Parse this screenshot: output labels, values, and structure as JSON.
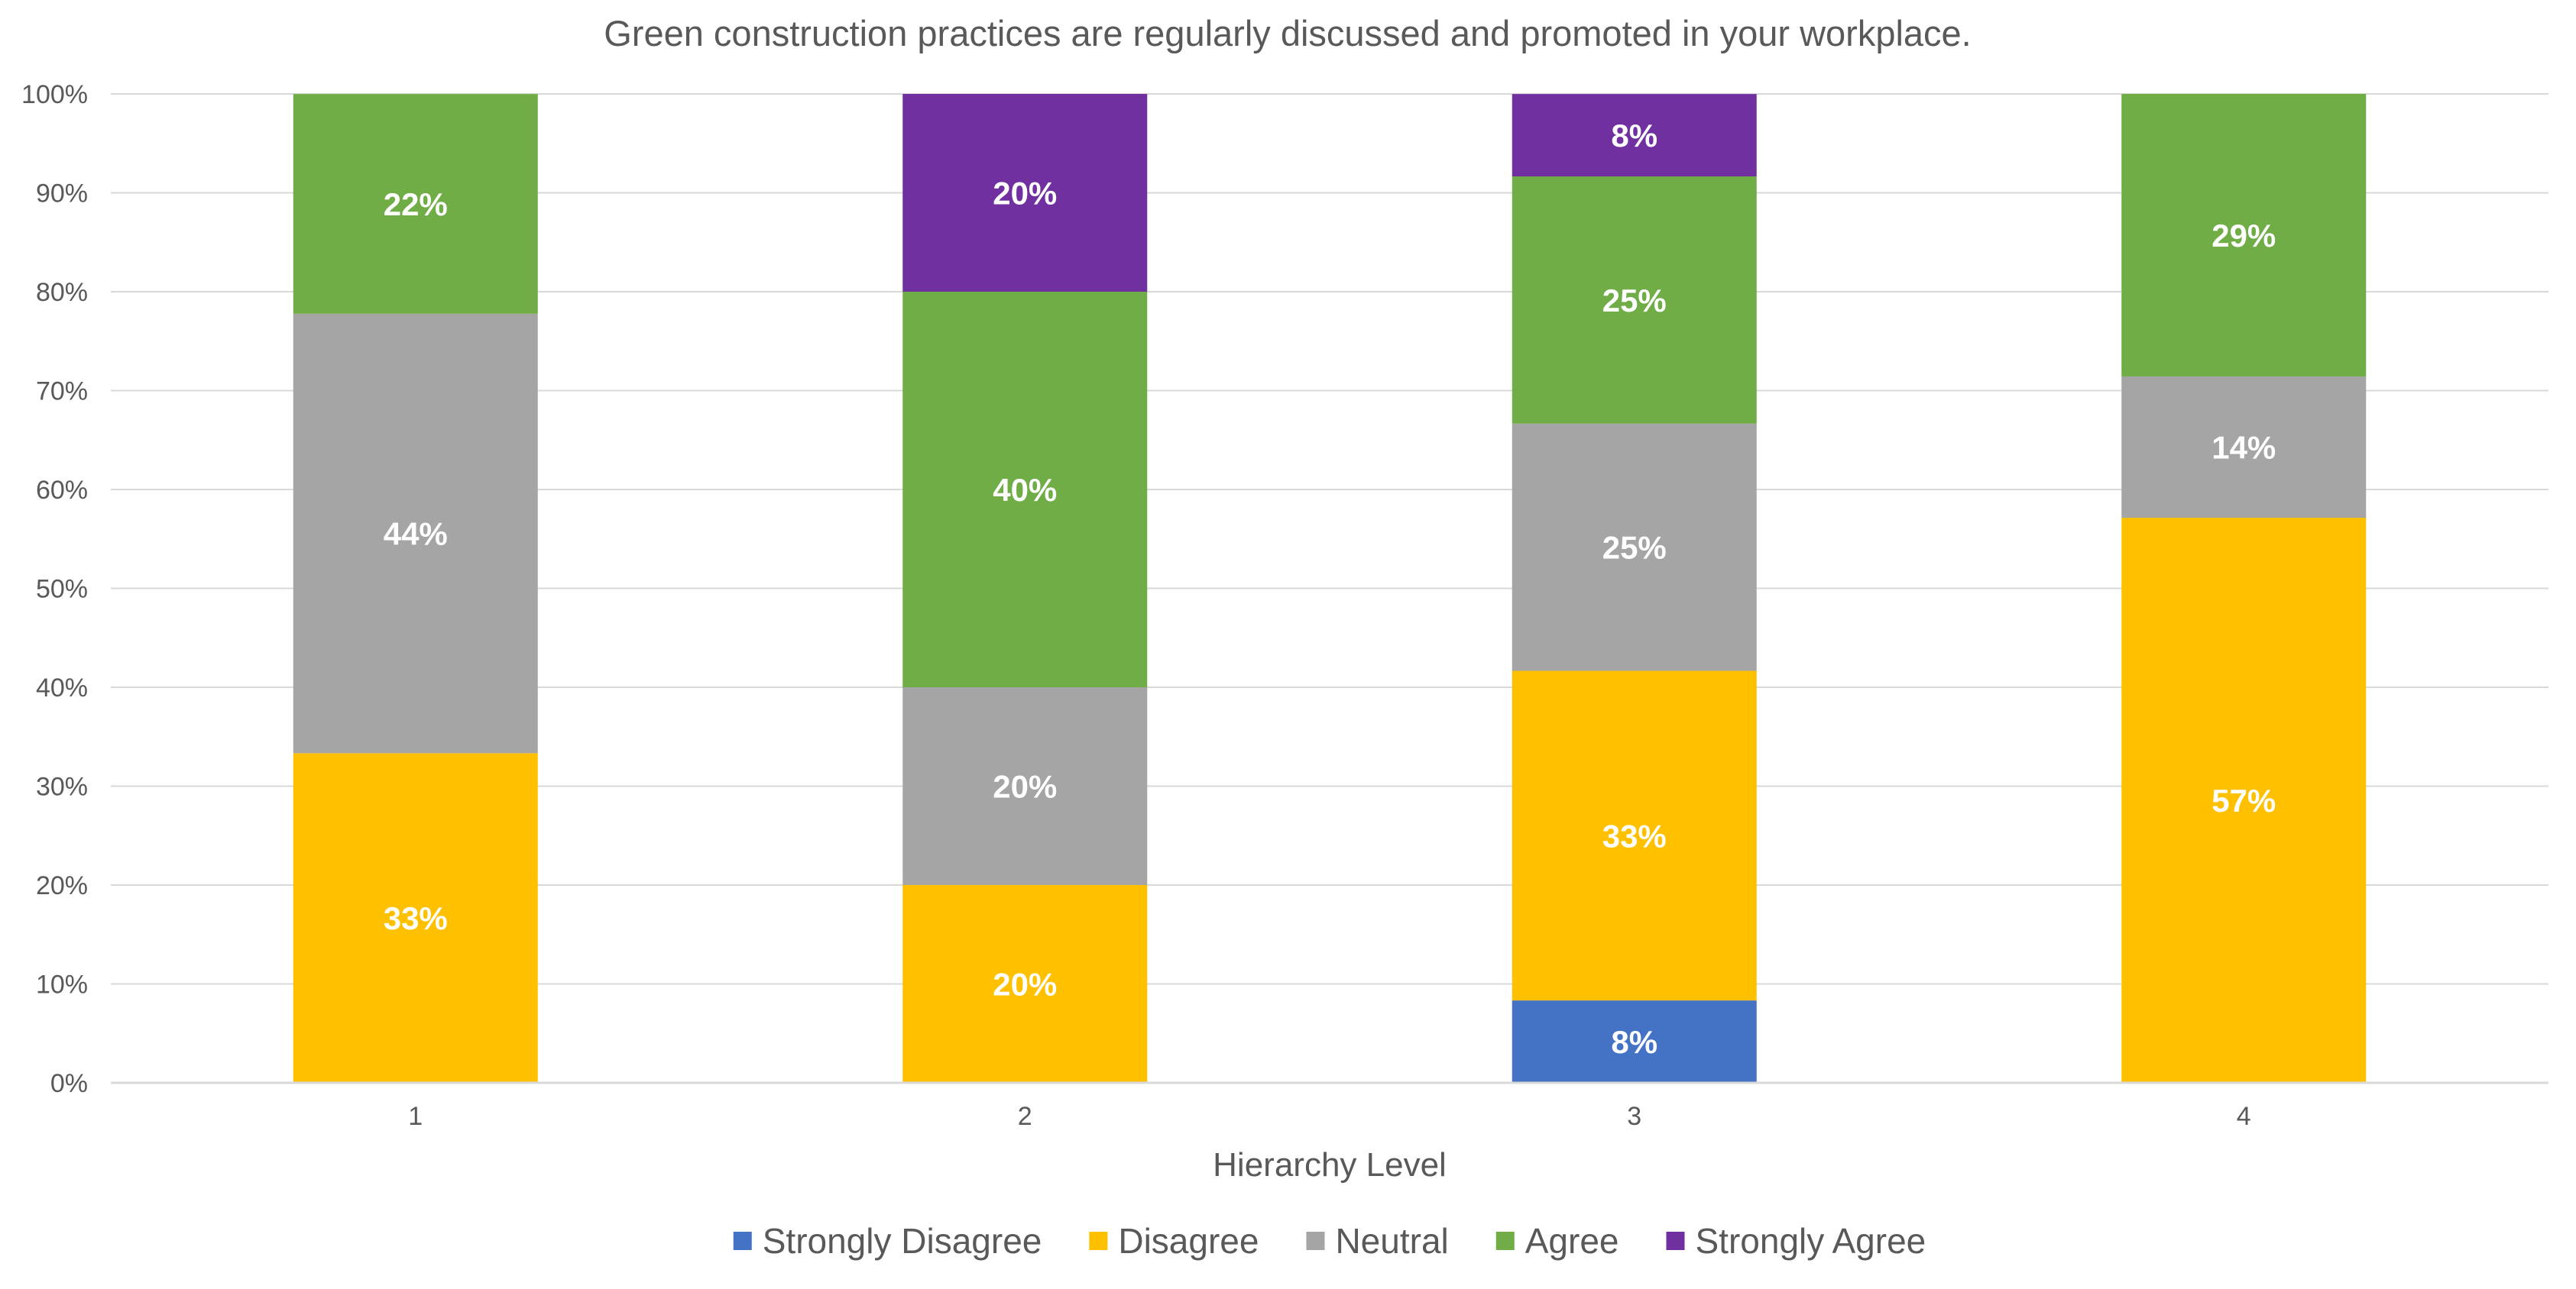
{
  "chart_data": {
    "type": "bar",
    "stacked": true,
    "title": "Green construction practices are regularly discussed and promoted in your workplace.",
    "xlabel": "Hierarchy Level",
    "ylabel": "",
    "categories": [
      "1",
      "2",
      "3",
      "4"
    ],
    "ylim": [
      0,
      100
    ],
    "y_ticks": [
      "0%",
      "10%",
      "20%",
      "30%",
      "40%",
      "50%",
      "60%",
      "70%",
      "80%",
      "90%",
      "100%"
    ],
    "grid": true,
    "legend_position": "bottom",
    "series": [
      {
        "name": "Strongly Disagree",
        "color": "#4472C4",
        "values": [
          0,
          0,
          8.33,
          0
        ],
        "labels": [
          "",
          "",
          "8%",
          ""
        ]
      },
      {
        "name": "Disagree",
        "color": "#FFC000",
        "values": [
          33.33,
          20,
          33.33,
          57.14
        ],
        "labels": [
          "33%",
          "20%",
          "33%",
          "57%"
        ]
      },
      {
        "name": "Neutral",
        "color": "#A5A5A5",
        "values": [
          44.44,
          20,
          25,
          14.29
        ],
        "labels": [
          "44%",
          "20%",
          "25%",
          "14%"
        ]
      },
      {
        "name": "Agree",
        "color": "#70AD47",
        "values": [
          22.22,
          40,
          25,
          28.57
        ],
        "labels": [
          "22%",
          "40%",
          "25%",
          "29%"
        ]
      },
      {
        "name": "Strongly Agree",
        "color": "#7030A0",
        "values": [
          0,
          20,
          8.33,
          0
        ],
        "labels": [
          "",
          "20%",
          "8%",
          ""
        ]
      }
    ]
  }
}
